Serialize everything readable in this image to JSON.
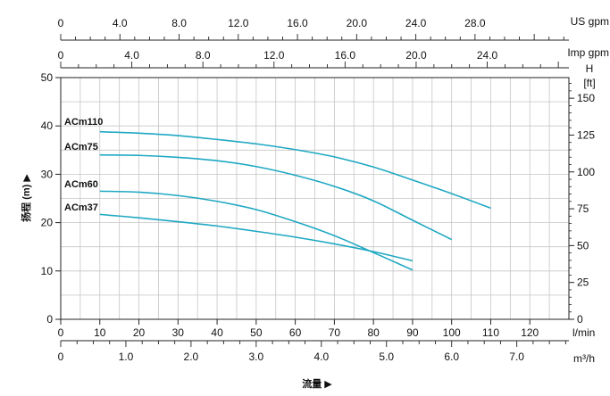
{
  "chart_data": {
    "type": "line",
    "x_unit": "l/min",
    "x_ticks": [
      0,
      10,
      20,
      30,
      40,
      50,
      60,
      70,
      80,
      90,
      100,
      110,
      120
    ],
    "xlim": [
      0,
      130
    ],
    "y_left_ticks": [
      0,
      10,
      20,
      30,
      40,
      50
    ],
    "ylim": [
      0,
      50
    ],
    "y_right_title": "H",
    "y_right_unit": "[ft]",
    "y_right_ticks": [
      0,
      25,
      50,
      75,
      100,
      125,
      150
    ],
    "y_right_lim": [
      0,
      164
    ],
    "ylabel": "扬程 (m) ▶",
    "xlabel": "流量 ▶",
    "grid": true,
    "secondary_x_axes": [
      {
        "unit": "US gpm",
        "ticks": [
          "0",
          "4.0",
          "8.0",
          "12.0",
          "16.0",
          "20.0",
          "24.0",
          "28.0"
        ],
        "tick_values": [
          0,
          4,
          8,
          12,
          16,
          20,
          24,
          28
        ],
        "lpm_per_unit": 3.785
      },
      {
        "unit": "Imp gpm",
        "ticks": [
          "0",
          "4.0",
          "8.0",
          "12.0",
          "16.0",
          "20.0",
          "24.0"
        ],
        "tick_values": [
          0,
          4,
          8,
          12,
          16,
          20,
          24
        ],
        "lpm_per_unit": 4.546
      },
      {
        "unit": "m³/h",
        "ticks": [
          "0",
          "1.0",
          "2.0",
          "3.0",
          "4.0",
          "5.0",
          "6.0",
          "7.0"
        ],
        "tick_values": [
          0,
          1,
          2,
          3,
          4,
          5,
          6,
          7
        ],
        "lpm_per_unit": 16.667
      }
    ],
    "series": [
      {
        "name": "ACm110",
        "x": [
          10,
          20,
          30,
          40,
          50,
          60,
          70,
          80,
          90,
          100,
          110
        ],
        "y": [
          38.8,
          38.5,
          38,
          37.2,
          36.3,
          35.1,
          33.6,
          31.5,
          28.8,
          26,
          23
        ]
      },
      {
        "name": "ACm75",
        "x": [
          10,
          20,
          30,
          40,
          50,
          60,
          70,
          80,
          90,
          100
        ],
        "y": [
          34,
          33.9,
          33.5,
          32.8,
          31.6,
          29.8,
          27.5,
          24.5,
          20.5,
          16.5
        ]
      },
      {
        "name": "ACm60",
        "x": [
          10,
          20,
          30,
          40,
          50,
          60,
          70,
          80,
          90
        ],
        "y": [
          26.5,
          26.3,
          25.6,
          24.4,
          22.7,
          20.2,
          17.3,
          13.8,
          10.2
        ]
      },
      {
        "name": "ACm37",
        "x": [
          10,
          20,
          30,
          40,
          50,
          60,
          70,
          80,
          90
        ],
        "y": [
          21.7,
          21,
          20.2,
          19.3,
          18.2,
          17,
          15.6,
          14,
          12.1
        ]
      }
    ],
    "line_color": "#1fa8c3",
    "grid_color": "#c6c6c6"
  }
}
